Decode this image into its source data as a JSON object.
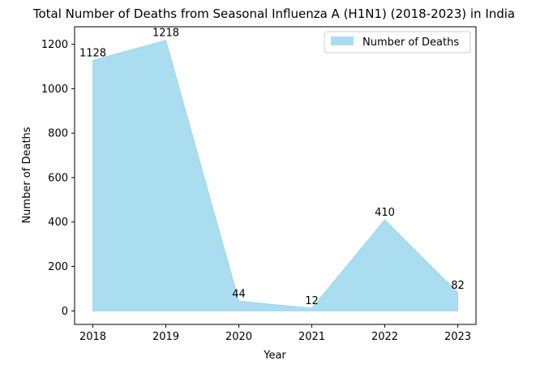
{
  "chart_data": {
    "type": "area",
    "title": "Total Number of Deaths from Seasonal Influenza A (H1N1) (2018-2023) in India",
    "xlabel": "Year",
    "ylabel": "Number of Deaths",
    "x": [
      2018,
      2019,
      2020,
      2021,
      2022,
      2023
    ],
    "series": [
      {
        "name": "Number of Deaths",
        "values": [
          1128,
          1218,
          44,
          12,
          410,
          82
        ],
        "color": "#87ceeb"
      }
    ],
    "data_labels": [
      "1128",
      "1218",
      "44",
      "12",
      "410",
      "82"
    ],
    "xticks": [
      "2018",
      "2019",
      "2020",
      "2021",
      "2022",
      "2023"
    ],
    "yticks": [
      0,
      200,
      400,
      600,
      800,
      1000,
      1200
    ],
    "ytick_labels": [
      "0",
      "200",
      "400",
      "600",
      "800",
      "1000",
      "1200"
    ],
    "xlim": [
      2017.75,
      2023.25
    ],
    "ylim": [
      -60.9,
      1278.9
    ],
    "grid": false,
    "legend_position": "top-right",
    "fill_alpha": 0.7
  }
}
